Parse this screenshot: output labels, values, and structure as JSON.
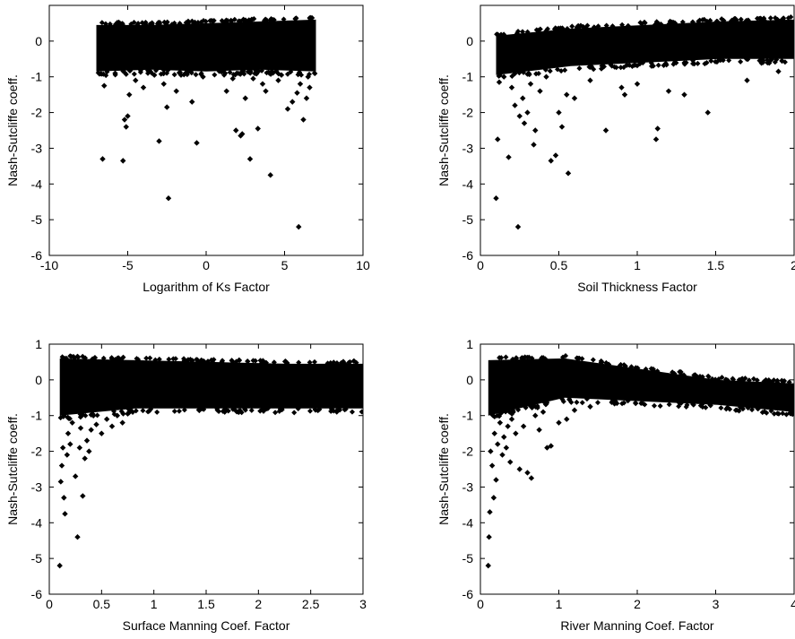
{
  "figure": {
    "background": "#ffffff",
    "marker_color": "#000000",
    "marker": "diamond"
  },
  "chart_data": [
    {
      "type": "scatter",
      "xlabel": "Logarithm of Ks Factor",
      "ylabel": "Nash-Sutcliffe coeff.",
      "xlim": [
        -10,
        10
      ],
      "ylim": [
        -6,
        1
      ],
      "xticks": [
        -10,
        -5,
        0,
        5,
        10
      ],
      "yticks": [
        -6,
        -5,
        -4,
        -3,
        -2,
        -1,
        0
      ],
      "grid": false,
      "dense_cloud": {
        "x_range": [
          -7,
          7
        ],
        "y_bottom": [
          -0.85,
          -0.8,
          -0.85,
          -0.8,
          -0.85
        ],
        "y_top": [
          0.45,
          0.45,
          0.5,
          0.55,
          0.6
        ]
      },
      "points": [
        [
          -6.6,
          -3.3
        ],
        [
          -6.5,
          -1.25
        ],
        [
          -5.8,
          -0.9
        ],
        [
          -5.3,
          -3.35
        ],
        [
          -5.1,
          -2.4
        ],
        [
          -5.0,
          -2.1
        ],
        [
          -5.2,
          -2.2
        ],
        [
          -4.9,
          -1.5
        ],
        [
          -4.5,
          -1.1
        ],
        [
          -4.0,
          -1.3
        ],
        [
          -3.3,
          -0.95
        ],
        [
          -3.0,
          -2.8
        ],
        [
          -2.7,
          -1.2
        ],
        [
          -2.5,
          -1.85
        ],
        [
          -2.4,
          -4.4
        ],
        [
          -1.9,
          -1.4
        ],
        [
          -1.6,
          -0.95
        ],
        [
          -0.9,
          -1.7
        ],
        [
          -0.6,
          -2.85
        ],
        [
          -0.2,
          -1.0
        ],
        [
          1.3,
          -1.4
        ],
        [
          1.7,
          -1.05
        ],
        [
          1.9,
          -2.5
        ],
        [
          2.2,
          -2.65
        ],
        [
          2.3,
          -2.6
        ],
        [
          2.5,
          -1.6
        ],
        [
          2.8,
          -3.3
        ],
        [
          3.0,
          -1.05
        ],
        [
          3.3,
          -2.45
        ],
        [
          3.6,
          -1.2
        ],
        [
          3.8,
          -1.4
        ],
        [
          4.1,
          -3.75
        ],
        [
          4.6,
          -1.1
        ],
        [
          4.8,
          -0.95
        ],
        [
          5.2,
          -1.9
        ],
        [
          5.5,
          -1.7
        ],
        [
          5.8,
          -1.45
        ],
        [
          5.9,
          -5.2
        ],
        [
          6.0,
          -1.2
        ],
        [
          6.2,
          -2.2
        ],
        [
          6.4,
          -1.6
        ],
        [
          6.5,
          -1.0
        ],
        [
          6.6,
          -1.3
        ]
      ]
    },
    {
      "type": "scatter",
      "xlabel": "Soil Thickness Factor",
      "ylabel": "Nash-Sutcliffe coeff.",
      "xlim": [
        0,
        2
      ],
      "ylim": [
        -6,
        1
      ],
      "xticks": [
        0,
        0.5,
        1,
        1.5,
        2
      ],
      "yticks": [
        -6,
        -5,
        -4,
        -3,
        -2,
        -1,
        0
      ],
      "grid": false,
      "dense_cloud": {
        "x_range": [
          0.1,
          2.0
        ],
        "y_bottom": [
          -0.95,
          -0.7,
          -0.6,
          -0.5,
          -0.5
        ],
        "y_top": [
          0.15,
          0.35,
          0.45,
          0.55,
          0.6
        ]
      },
      "points": [
        [
          0.1,
          -4.4
        ],
        [
          0.11,
          -2.75
        ],
        [
          0.12,
          -1.15
        ],
        [
          0.15,
          -1.0
        ],
        [
          0.18,
          -3.25
        ],
        [
          0.2,
          -1.3
        ],
        [
          0.22,
          -1.8
        ],
        [
          0.24,
          -5.2
        ],
        [
          0.25,
          -2.1
        ],
        [
          0.27,
          -1.6
        ],
        [
          0.28,
          -2.3
        ],
        [
          0.3,
          -2.0
        ],
        [
          0.32,
          -1.2
        ],
        [
          0.34,
          -2.9
        ],
        [
          0.35,
          -2.5
        ],
        [
          0.38,
          -1.4
        ],
        [
          0.42,
          -1.0
        ],
        [
          0.45,
          -3.35
        ],
        [
          0.48,
          -3.2
        ],
        [
          0.5,
          -2.0
        ],
        [
          0.52,
          -2.4
        ],
        [
          0.55,
          -1.5
        ],
        [
          0.56,
          -3.7
        ],
        [
          0.6,
          -1.6
        ],
        [
          0.7,
          -1.1
        ],
        [
          0.8,
          -2.5
        ],
        [
          0.9,
          -1.3
        ],
        [
          0.92,
          -1.5
        ],
        [
          1.0,
          -1.2
        ],
        [
          1.12,
          -2.75
        ],
        [
          1.13,
          -2.45
        ],
        [
          1.2,
          -1.4
        ],
        [
          1.3,
          -1.5
        ],
        [
          1.45,
          -2.0
        ],
        [
          1.7,
          -1.1
        ],
        [
          1.9,
          -0.85
        ]
      ]
    },
    {
      "type": "scatter",
      "xlabel": "Surface Manning Coef. Factor",
      "ylabel": "Nash-Sutcliffe coeff.",
      "xlim": [
        0,
        3
      ],
      "ylim": [
        -6,
        1
      ],
      "xticks": [
        0,
        0.5,
        1,
        1.5,
        2,
        2.5,
        3
      ],
      "yticks": [
        -6,
        -5,
        -4,
        -3,
        -2,
        -1,
        0,
        1
      ],
      "grid": false,
      "dense_cloud": {
        "x_range": [
          0.1,
          3.0
        ],
        "y_bottom": [
          -1.0,
          -0.8,
          -0.8,
          -0.8,
          -0.8
        ],
        "y_top": [
          0.6,
          0.55,
          0.5,
          0.45,
          0.45
        ]
      },
      "points": [
        [
          0.1,
          -5.2
        ],
        [
          0.11,
          -2.85
        ],
        [
          0.12,
          -2.4
        ],
        [
          0.13,
          -1.9
        ],
        [
          0.14,
          -3.3
        ],
        [
          0.15,
          -3.75
        ],
        [
          0.17,
          -2.1
        ],
        [
          0.18,
          -1.5
        ],
        [
          0.2,
          -1.8
        ],
        [
          0.22,
          -1.2
        ],
        [
          0.25,
          -2.7
        ],
        [
          0.27,
          -4.4
        ],
        [
          0.29,
          -1.9
        ],
        [
          0.3,
          -1.35
        ],
        [
          0.32,
          -3.25
        ],
        [
          0.34,
          -2.2
        ],
        [
          0.36,
          -1.7
        ],
        [
          0.38,
          -2.0
        ],
        [
          0.4,
          -1.4
        ],
        [
          0.45,
          -1.25
        ],
        [
          0.5,
          -1.5
        ],
        [
          0.55,
          -1.1
        ],
        [
          0.6,
          -1.3
        ],
        [
          0.65,
          -1.0
        ],
        [
          0.7,
          -1.2
        ],
        [
          0.75,
          -0.95
        ]
      ]
    },
    {
      "type": "scatter",
      "xlabel": "River Manning Coef. Factor",
      "ylabel": "Nash-Sutcliffe coeff.",
      "xlim": [
        0,
        4
      ],
      "ylim": [
        -6,
        1
      ],
      "xticks": [
        0,
        1,
        2,
        3,
        4
      ],
      "yticks": [
        -6,
        -5,
        -4,
        -3,
        -2,
        -1,
        0,
        1
      ],
      "grid": false,
      "dense_cloud": {
        "x_range": [
          0.1,
          4.0
        ],
        "y_bottom": [
          -1.0,
          -0.5,
          -0.6,
          -0.7,
          -0.9
        ],
        "y_top": [
          0.55,
          0.6,
          0.3,
          0.0,
          -0.1
        ]
      },
      "points": [
        [
          0.1,
          -5.2
        ],
        [
          0.11,
          -4.4
        ],
        [
          0.12,
          -3.7
        ],
        [
          0.13,
          -2.0
        ],
        [
          0.15,
          -2.4
        ],
        [
          0.17,
          -3.3
        ],
        [
          0.18,
          -1.5
        ],
        [
          0.2,
          -2.8
        ],
        [
          0.22,
          -1.8
        ],
        [
          0.25,
          -1.2
        ],
        [
          0.28,
          -2.1
        ],
        [
          0.3,
          -1.6
        ],
        [
          0.33,
          -1.9
        ],
        [
          0.35,
          -1.3
        ],
        [
          0.38,
          -2.3
        ],
        [
          0.4,
          -1.1
        ],
        [
          0.45,
          -1.5
        ],
        [
          0.5,
          -2.5
        ],
        [
          0.55,
          -1.3
        ],
        [
          0.6,
          -2.6
        ],
        [
          0.65,
          -2.75
        ],
        [
          0.7,
          -1.0
        ],
        [
          0.75,
          -1.4
        ],
        [
          0.8,
          -0.9
        ],
        [
          0.85,
          -1.9
        ],
        [
          0.9,
          -1.85
        ],
        [
          1.0,
          -1.2
        ],
        [
          1.1,
          -1.1
        ],
        [
          1.2,
          -0.85
        ],
        [
          1.4,
          -0.75
        ]
      ]
    }
  ]
}
